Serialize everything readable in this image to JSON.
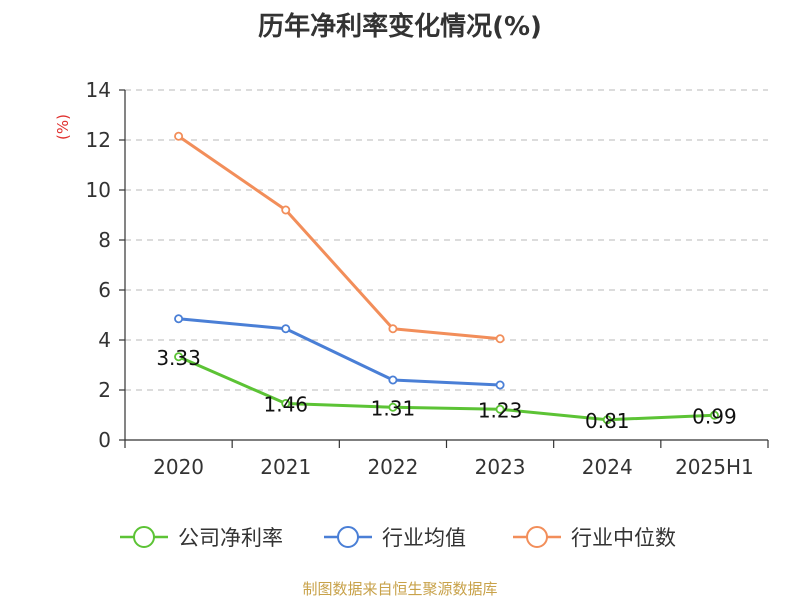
{
  "title": "历年净利率变化情况(%)",
  "source": "制图数据来自恒生聚源数据库",
  "chart_data": {
    "type": "line",
    "title": "历年净利率变化情况(%)",
    "ylabel": "(%)",
    "ylim": [
      0,
      14
    ],
    "yticks": [
      0,
      2,
      4,
      6,
      8,
      10,
      12,
      14
    ],
    "categories": [
      "2020",
      "2021",
      "2022",
      "2023",
      "2024",
      "2025H1"
    ],
    "grid": true,
    "legend_position": "bottom",
    "series": [
      {
        "name": "公司净利率",
        "color": "#5cc335",
        "values": [
          3.33,
          1.46,
          1.31,
          1.23,
          0.81,
          0.99
        ],
        "labels": [
          "3.33",
          "1.46",
          "1.31",
          "1.23",
          "0.81",
          "0.99"
        ]
      },
      {
        "name": "行业均值",
        "color": "#4a7fd6",
        "values": [
          4.85,
          4.45,
          2.4,
          2.2,
          null,
          null
        ]
      },
      {
        "name": "行业中位数",
        "color": "#f28e5a",
        "values": [
          12.15,
          9.2,
          4.45,
          4.05,
          null,
          null
        ]
      }
    ]
  }
}
